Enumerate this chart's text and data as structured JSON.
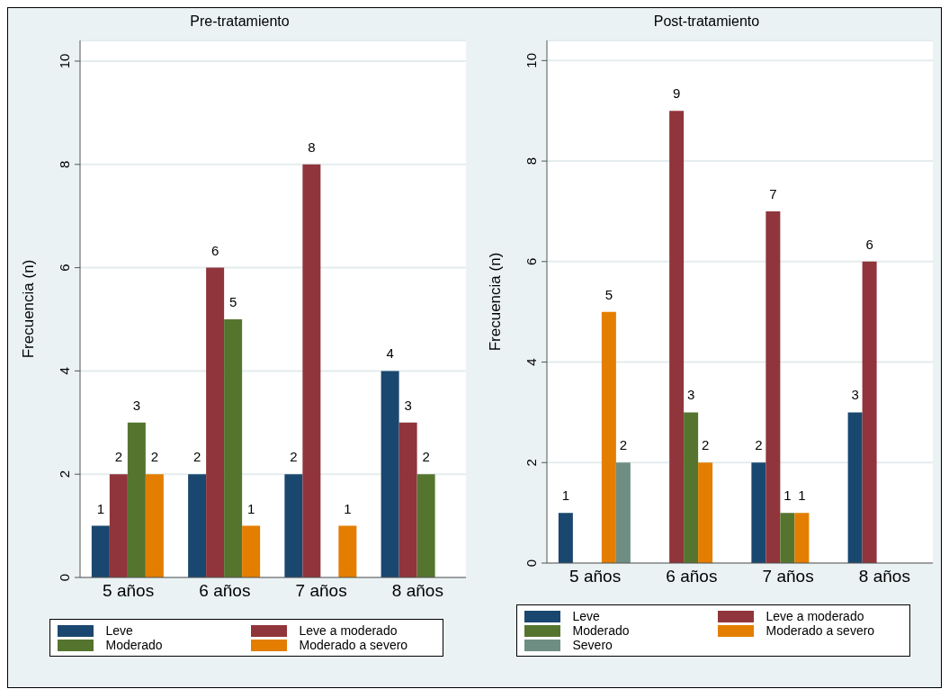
{
  "chart_data": [
    {
      "type": "bar",
      "title": "Pre-tratamiento",
      "ylabel": "Frecuencia (n)",
      "categories": [
        "5 años",
        "6 años",
        "7 años",
        "8 años"
      ],
      "series": [
        {
          "name": "Leve",
          "color": "#1a476f",
          "values": [
            1,
            2,
            2,
            4
          ]
        },
        {
          "name": "Leve a moderado",
          "color": "#90353b",
          "values": [
            2,
            6,
            8,
            3
          ]
        },
        {
          "name": "Moderado",
          "color": "#55752f",
          "values": [
            3,
            5,
            null,
            2
          ]
        },
        {
          "name": "Moderado a severo",
          "color": "#e37e00",
          "values": [
            2,
            1,
            1,
            null
          ]
        }
      ],
      "ylim": [
        0,
        10.4
      ],
      "yticks": [
        0,
        2,
        4,
        6,
        8,
        10
      ],
      "grid": "y",
      "legend": "bottom",
      "data_labels": true
    },
    {
      "type": "bar",
      "title": "Post-tratamiento",
      "ylabel": "Frecuencia (n)",
      "categories": [
        "5 años",
        "6 años",
        "7 años",
        "8 años"
      ],
      "series": [
        {
          "name": "Leve",
          "color": "#1a476f",
          "values": [
            1,
            null,
            2,
            3
          ]
        },
        {
          "name": "Leve a moderado",
          "color": "#90353b",
          "values": [
            null,
            9,
            7,
            6
          ]
        },
        {
          "name": "Moderado",
          "color": "#55752f",
          "values": [
            null,
            3,
            1,
            null
          ]
        },
        {
          "name": "Moderado a severo",
          "color": "#e37e00",
          "values": [
            5,
            2,
            1,
            null
          ]
        },
        {
          "name": "Severo",
          "color": "#6e8e84",
          "values": [
            2,
            null,
            null,
            null
          ]
        }
      ],
      "ylim": [
        0,
        10.4
      ],
      "yticks": [
        0,
        2,
        4,
        6,
        8,
        10
      ],
      "grid": "y",
      "legend": "bottom",
      "data_labels": true
    }
  ]
}
